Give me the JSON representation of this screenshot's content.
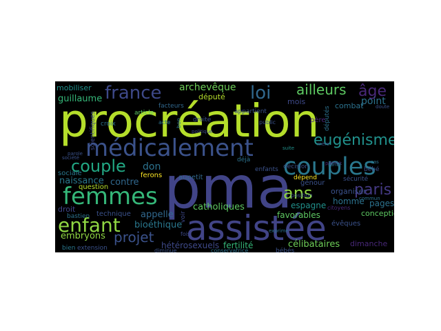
{
  "wordcloud": {
    "background": "#000000",
    "words": [
      {
        "text": "procréation",
        "color": "#b5de2b"
      },
      {
        "text": "pma",
        "color": "#414487"
      },
      {
        "text": "assistée",
        "color": "#414487"
      },
      {
        "text": "médicalement",
        "color": "#3b528b"
      },
      {
        "text": "couples",
        "color": "#2a788e"
      },
      {
        "text": "femmes",
        "color": "#35b779"
      },
      {
        "text": "couple",
        "color": "#22a884"
      },
      {
        "text": "enfant",
        "color": "#90d743"
      },
      {
        "text": "france",
        "color": "#3e4989"
      },
      {
        "text": "eugénisme",
        "color": "#21918c"
      },
      {
        "text": "ans",
        "color": "#90d743"
      },
      {
        "text": "paris",
        "color": "#443983"
      },
      {
        "text": "loi",
        "color": "#31688e"
      },
      {
        "text": "ailleurs",
        "color": "#5ec962"
      },
      {
        "text": "âge",
        "color": "#482878"
      },
      {
        "text": "projet",
        "color": "#3b528b"
      },
      {
        "text": "catholiques",
        "color": "#5ec962"
      },
      {
        "text": "archevêque",
        "color": "#6ece58"
      },
      {
        "text": "embryons",
        "color": "#90d743"
      },
      {
        "text": "guillaume",
        "color": "#35b779"
      },
      {
        "text": "mobiliser",
        "color": "#21918c"
      },
      {
        "text": "don",
        "color": "#2c728e"
      },
      {
        "text": "contre",
        "color": "#31688e"
      },
      {
        "text": "naissance",
        "color": "#2a788e"
      },
      {
        "text": "sociale",
        "color": "#2a788e"
      },
      {
        "text": "appelle",
        "color": "#31688e"
      },
      {
        "text": "bioéthique",
        "color": "#2a788e"
      },
      {
        "text": "droit",
        "color": "#404688"
      },
      {
        "text": "fertilité",
        "color": "#35b779"
      },
      {
        "text": "hétérosexuels",
        "color": "#3e4989"
      },
      {
        "text": "célibataires",
        "color": "#6ece58"
      },
      {
        "text": "dimanche",
        "color": "#482878"
      },
      {
        "text": "pages",
        "color": "#2c728e"
      },
      {
        "text": "conception",
        "color": "#5ec962"
      },
      {
        "text": "favorables",
        "color": "#5ec962"
      },
      {
        "text": "point",
        "color": "#2c728e"
      },
      {
        "text": "espagne",
        "color": "#21918c"
      },
      {
        "text": "homme",
        "color": "#2c728e"
      },
      {
        "text": "organiser",
        "color": "#3b528b"
      },
      {
        "text": "évêques",
        "color": "#3b528b"
      },
      {
        "text": "combat",
        "color": "#2c728e"
      },
      {
        "text": "mois",
        "color": "#3e4989"
      },
      {
        "text": "député",
        "color": "#b5de2b"
      },
      {
        "text": "article",
        "color": "#5ec962"
      },
      {
        "text": "facteurs",
        "color": "#31688e"
      },
      {
        "text": "appartient",
        "color": "#3b528b"
      },
      {
        "text": "technique",
        "color": "#3b528b"
      },
      {
        "text": "question",
        "color": "#b5de2b"
      },
      {
        "text": "sécurité",
        "color": "#3b528b"
      },
      {
        "text": "décision",
        "color": "#3b528b"
      },
      {
        "text": "enfants",
        "color": "#3b528b"
      },
      {
        "text": "bébés",
        "color": "#3b528b"
      },
      {
        "text": "père",
        "color": "#482878"
      },
      {
        "text": "dépend",
        "color": "#fde725"
      },
      {
        "text": "croix",
        "color": "#2c728e"
      },
      {
        "text": "bastien",
        "color": "#2c728e"
      },
      {
        "text": "extension",
        "color": "#3b528b"
      },
      {
        "text": "bien",
        "color": "#2a788e"
      },
      {
        "text": "fois",
        "color": "#3e4989"
      },
      {
        "text": "voir",
        "color": "#3e4989"
      },
      {
        "text": "acte",
        "color": "#2c728e"
      },
      {
        "text": "droite",
        "color": "#3b528b"
      },
      {
        "text": "déjà",
        "color": "#2c728e"
      },
      {
        "text": "aupetit",
        "color": "#31688e"
      },
      {
        "text": "ferons",
        "color": "#fde725"
      },
      {
        "text": "bon",
        "color": "#2c728e"
      },
      {
        "text": "citoyens",
        "color": "#482878"
      },
      {
        "text": "doute",
        "color": "#3b528b"
      },
      {
        "text": "bébé",
        "color": "#3b528b"
      },
      {
        "text": "commun",
        "color": "#2c728e"
      },
      {
        "text": "cas",
        "color": "#2c728e"
      },
      {
        "text": "génour",
        "color": "#3b528b"
      },
      {
        "text": "diminue",
        "color": "#3b528b"
      },
      {
        "text": "conservatrice",
        "color": "#2c728e"
      },
      {
        "text": "parole",
        "color": "#3b528b"
      },
      {
        "text": "société",
        "color": "#3b528b"
      },
      {
        "text": "scientifiques",
        "color": "#3e4989"
      },
      {
        "text": "députés",
        "color": "#2c728e"
      },
      {
        "text": "patrick",
        "color": "#482878"
      },
      {
        "text": "politique",
        "color": "#3e4989"
      },
      {
        "text": "position",
        "color": "#3b528b"
      },
      {
        "text": "exprime",
        "color": "#2c728e"
      },
      {
        "text": "suite",
        "color": "#21918c"
      },
      {
        "text": "mère",
        "color": "#3b528b"
      },
      {
        "text": "santé",
        "color": "#2c728e"
      },
      {
        "text": "public",
        "color": "#3b528b"
      }
    ]
  }
}
